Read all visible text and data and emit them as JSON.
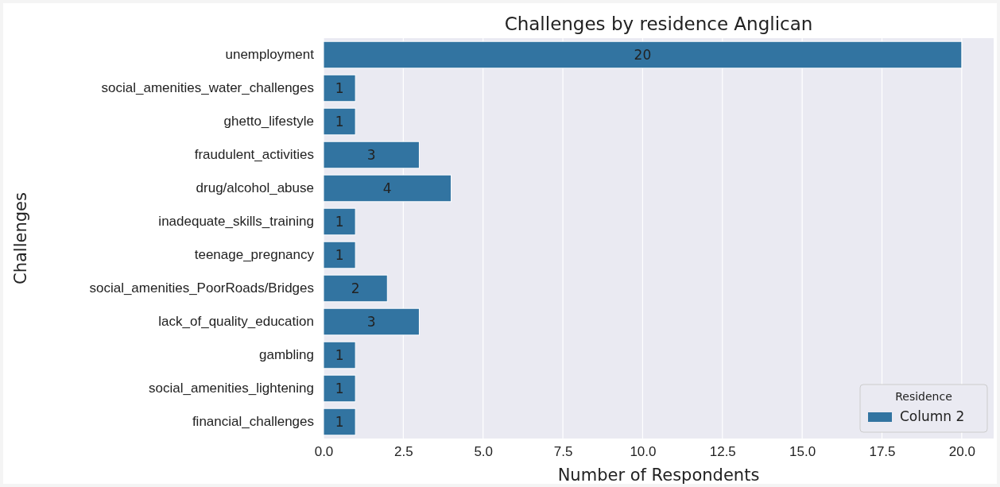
{
  "chart_data": {
    "type": "bar",
    "orientation": "horizontal",
    "title": "Challenges by residence Anglican",
    "xlabel": "Number of Respondents",
    "ylabel": "Challenges",
    "categories": [
      "unemployment",
      "social_amenities_water_challenges",
      "ghetto_lifestyle",
      "fraudulent_activities",
      "drug/alcohol_abuse",
      "inadequate_skills_training",
      "teenage_pregnancy",
      "social_amenities_PoorRoads/Bridges",
      "lack_of_quality_education",
      "gambling",
      "social_amenities_lightening",
      "financial_challenges"
    ],
    "series": [
      {
        "name": "Column 2",
        "color": "#3274a1",
        "values": [
          20,
          1,
          1,
          3,
          4,
          1,
          1,
          2,
          3,
          1,
          1,
          1
        ]
      }
    ],
    "xlim": [
      0,
      21
    ],
    "xticks": [
      {
        "value": 0,
        "label": "0.0"
      },
      {
        "value": 2.5,
        "label": "2.5"
      },
      {
        "value": 5,
        "label": "5.0"
      },
      {
        "value": 7.5,
        "label": "7.5"
      },
      {
        "value": 10,
        "label": "10.0"
      },
      {
        "value": 12.5,
        "label": "12.5"
      },
      {
        "value": 15,
        "label": "15.0"
      },
      {
        "value": 17.5,
        "label": "17.5"
      },
      {
        "value": 20,
        "label": "20.0"
      }
    ],
    "grid": true,
    "legend": "bottom right",
    "legend_title": "Residence",
    "data_labels": true
  }
}
